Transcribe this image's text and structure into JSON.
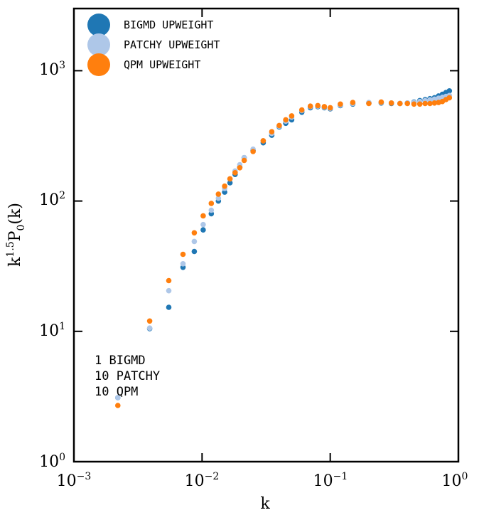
{
  "chart_data": {
    "type": "scatter",
    "xscale": "log",
    "yscale": "log",
    "xlim": [
      0.001,
      1
    ],
    "ylim": [
      1,
      3000
    ],
    "xlabel": "k",
    "ylabel": "k^{1.5}P_0(k)",
    "ylabel_parts": {
      "base1": "k",
      "sup": "1.5",
      "base2": "P",
      "sub": "0",
      "tail": "(k)"
    },
    "x_ticks": [
      {
        "value": 0.001,
        "base": "10",
        "exp": "−3"
      },
      {
        "value": 0.01,
        "base": "10",
        "exp": "−2"
      },
      {
        "value": 0.1,
        "base": "10",
        "exp": "−1"
      },
      {
        "value": 1,
        "base": "10",
        "exp": "0"
      }
    ],
    "y_ticks": [
      {
        "value": 1,
        "base": "10",
        "exp": "0"
      },
      {
        "value": 10,
        "base": "10",
        "exp": "1"
      },
      {
        "value": 100,
        "base": "10",
        "exp": "2"
      },
      {
        "value": 1000,
        "base": "10",
        "exp": "3"
      }
    ],
    "legend_position": "top-left",
    "series": [
      {
        "name": "BIGMD UPWEIGHT",
        "color": "#1f77b4",
        "x": [
          0.0022,
          0.0039,
          0.0055,
          0.0071,
          0.0087,
          0.0102,
          0.0118,
          0.0134,
          0.015,
          0.0165,
          0.0181,
          0.0197,
          0.0213,
          0.025,
          0.03,
          0.035,
          0.04,
          0.045,
          0.05,
          0.06,
          0.07,
          0.08,
          0.09,
          0.1,
          0.12,
          0.15,
          0.2,
          0.25,
          0.3,
          0.35,
          0.4,
          0.45,
          0.5,
          0.55,
          0.6,
          0.65,
          0.7,
          0.75,
          0.8,
          0.85
        ],
        "y": [
          3.1,
          10.5,
          15.3,
          31,
          41,
          60,
          80,
          100,
          117,
          138,
          160,
          182,
          215,
          245,
          280,
          320,
          370,
          395,
          420,
          480,
          520,
          530,
          520,
          510,
          540,
          555,
          565,
          565,
          560,
          560,
          565,
          575,
          590,
          600,
          610,
          620,
          640,
          660,
          680,
          700
        ]
      },
      {
        "name": "PATCHY UPWEIGHT",
        "color": "#aec7e8",
        "x": [
          0.0022,
          0.0039,
          0.0055,
          0.0071,
          0.0087,
          0.0102,
          0.0118,
          0.0134,
          0.015,
          0.0165,
          0.0181,
          0.0197,
          0.0213,
          0.025,
          0.03,
          0.035,
          0.04,
          0.045,
          0.05,
          0.06,
          0.07,
          0.08,
          0.09,
          0.1,
          0.12,
          0.15,
          0.2,
          0.25,
          0.3,
          0.35,
          0.4,
          0.45,
          0.5,
          0.55,
          0.6,
          0.65,
          0.7,
          0.75,
          0.8,
          0.85
        ],
        "y": [
          3.1,
          10.6,
          20.5,
          33,
          49,
          66,
          85,
          105,
          125,
          148,
          170,
          190,
          215,
          250,
          290,
          330,
          375,
          410,
          440,
          495,
          530,
          535,
          525,
          515,
          545,
          560,
          570,
          570,
          565,
          562,
          565,
          570,
          580,
          590,
          598,
          605,
          615,
          625,
          635,
          645
        ]
      },
      {
        "name": "QPM UPWEIGHT",
        "color": "#ff7f0e",
        "x": [
          0.0022,
          0.0039,
          0.0055,
          0.0071,
          0.0087,
          0.0102,
          0.0118,
          0.0134,
          0.015,
          0.0165,
          0.0181,
          0.0197,
          0.0213,
          0.025,
          0.03,
          0.035,
          0.04,
          0.045,
          0.05,
          0.06,
          0.07,
          0.08,
          0.09,
          0.1,
          0.12,
          0.15,
          0.2,
          0.25,
          0.3,
          0.35,
          0.4,
          0.45,
          0.5,
          0.55,
          0.6,
          0.65,
          0.7,
          0.75,
          0.8,
          0.85
        ],
        "y": [
          2.7,
          12,
          24.5,
          39,
          57,
          77,
          96,
          113,
          130,
          148,
          165,
          180,
          205,
          240,
          290,
          340,
          380,
          420,
          450,
          500,
          535,
          540,
          530,
          520,
          555,
          570,
          560,
          575,
          565,
          560,
          560,
          555,
          555,
          560,
          560,
          565,
          570,
          580,
          600,
          620
        ]
      }
    ],
    "annotations": [
      "1 BIGMD",
      "10 PATCHY",
      "10 QPM"
    ]
  }
}
